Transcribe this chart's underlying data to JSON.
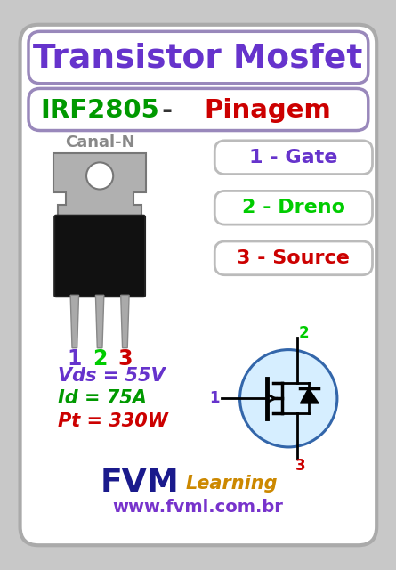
{
  "bg_color": "#ffffff",
  "outer_bg": "#c8c8c8",
  "title1": "Transistor Mosfet",
  "title1_color": "#6633cc",
  "title2_left": "IRF2805",
  "title2_left_color": "#009900",
  "title2_right": "Pinagem",
  "title2_right_color": "#cc0000",
  "canal_label": "Canal-N",
  "canal_color": "#888888",
  "pin_labels": [
    "1 - Gate",
    "2 - Dreno",
    "3 - Source"
  ],
  "pin_colors": [
    "#6633cc",
    "#00cc00",
    "#cc0000"
  ],
  "pin_number_colors": [
    "#6633cc",
    "#00cc00",
    "#cc0000"
  ],
  "spec_labels": [
    "Vds = 55V",
    "Id = 75A",
    "Pt = 330W"
  ],
  "spec_colors": [
    "#6633cc",
    "#009900",
    "#cc0000"
  ],
  "fvm_color": "#1a1a8c",
  "learning_color": "#cc8800",
  "url_color": "#7733cc",
  "url_text": "www.fvml.com.br",
  "white_bg": "#ffffff",
  "mosfet_circle_fill": "#d6eeff",
  "mosfet_circle_edge": "#3366aa"
}
